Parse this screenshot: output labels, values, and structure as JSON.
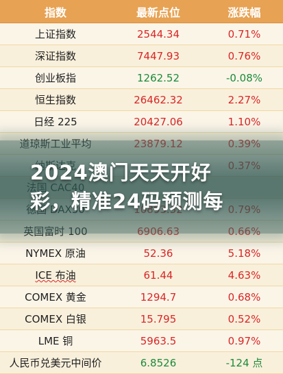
{
  "table": {
    "headers": {
      "name": "指数",
      "price": "最新点位",
      "change": "涨跌幅"
    },
    "rows": [
      {
        "name": "上证指数",
        "price": "2544.34",
        "change": "0.71%",
        "dir": "up"
      },
      {
        "name": "深证指数",
        "price": "7447.93",
        "change": "0.76%",
        "dir": "up"
      },
      {
        "name": "创业板指",
        "price": "1262.52",
        "change": "-0.08%",
        "dir": "down"
      },
      {
        "name": "恒生指数",
        "price": "26462.32",
        "change": "2.27%",
        "dir": "up"
      },
      {
        "name": "日经 225",
        "price": "20427.06",
        "change": "1.10%",
        "dir": "up"
      },
      {
        "name": "道琼斯工业平均",
        "price": "23879.12",
        "change": "0.39%",
        "dir": "up"
      },
      {
        "name": "纳斯达克",
        "price": "",
        "change": "0.37%",
        "dir": "up"
      },
      {
        "name": "法国 CAC40",
        "price": "",
        "change": "",
        "dir": "up"
      },
      {
        "name": "德国 DAX30",
        "price": "10893.32",
        "change": "0.79%",
        "dir": "up"
      },
      {
        "name": "英国富时 100",
        "price": "6906.63",
        "change": "0.66%",
        "dir": "up"
      },
      {
        "name": "NYMEX 原油",
        "price": "52.36",
        "change": "5.18%",
        "dir": "up"
      },
      {
        "name": "ICE 布油",
        "price": "61.44",
        "change": "4.63%",
        "dir": "up"
      },
      {
        "name": "COMEX 黄金",
        "price": "1294.7",
        "change": "0.68%",
        "dir": "up"
      },
      {
        "name": "COMEX 白银",
        "price": "15.795",
        "change": "0.52%",
        "dir": "up"
      },
      {
        "name": "LME 铜",
        "price": "5963.5",
        "change": "0.97%",
        "dir": "up"
      },
      {
        "name": "人民币兑美元中间价",
        "price": "6.8526",
        "change": "-124 点",
        "dir": "down"
      }
    ]
  },
  "banner": {
    "line1": "2024澳门天天开好",
    "line2": "彩，精准24码预测每"
  },
  "colors": {
    "header_bg": "#e7a253",
    "up": "#d92525",
    "down": "#1b8a3a",
    "banner_bg": "#3c645f"
  }
}
